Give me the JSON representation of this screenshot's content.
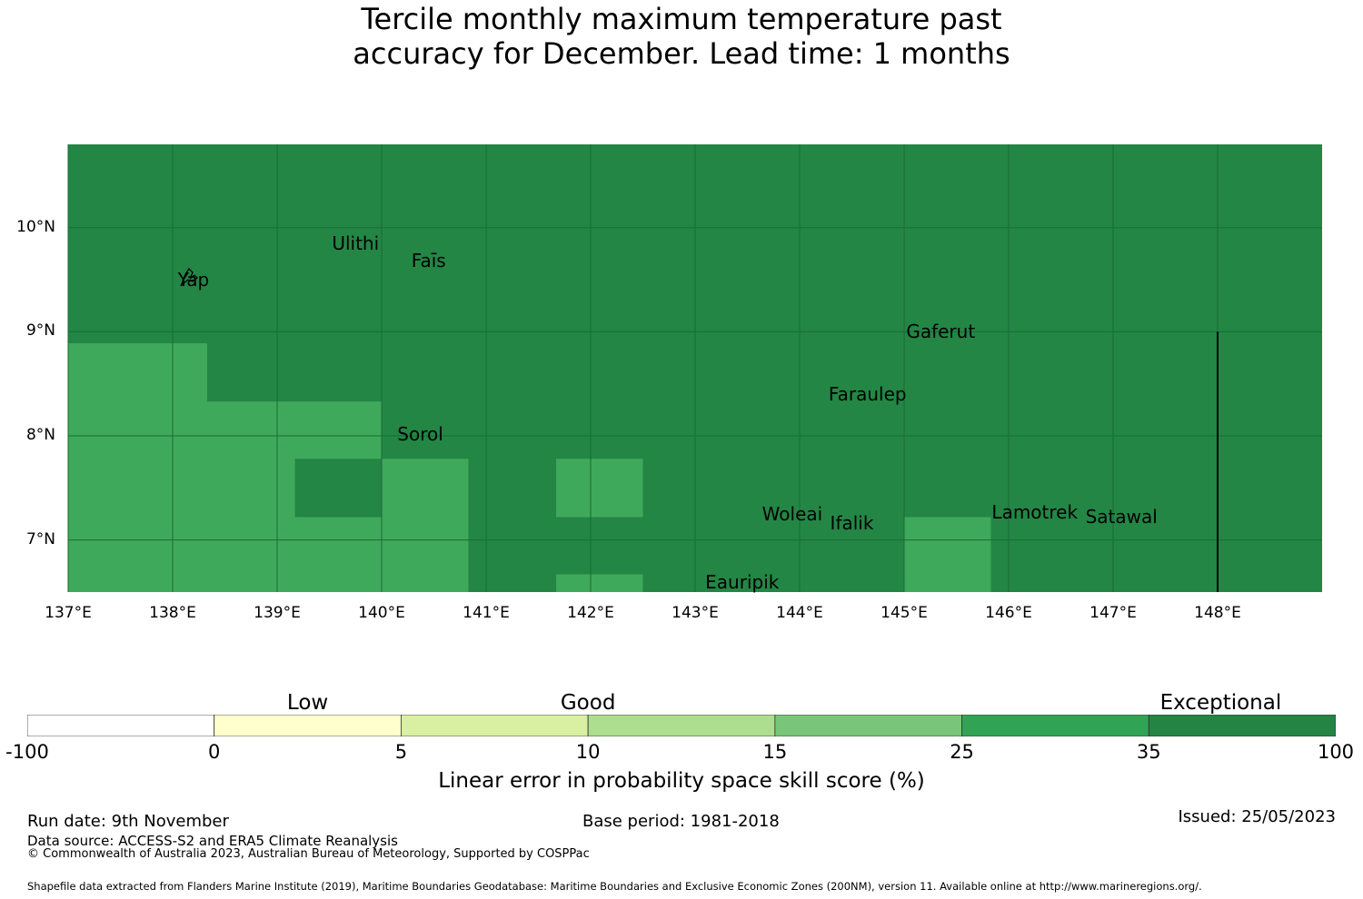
{
  "title": {
    "line1": "Tercile monthly maximum temperature past",
    "line2": "accuracy for December. Lead time: 1 months"
  },
  "colors": {
    "exceptional": "#238645",
    "very_good": "#3fa95b",
    "gridline": "#1a6b36"
  },
  "map": {
    "lon_range": [
      137,
      149
    ],
    "lat_range": [
      6.5,
      10.8
    ],
    "lat_ticks": [
      "10°N",
      "9°N",
      "8°N",
      "7°N"
    ],
    "lon_ticks": [
      "137°E",
      "138°E",
      "139°E",
      "140°E",
      "141°E",
      "142°E",
      "143°E",
      "144°E",
      "145°E",
      "146°E",
      "147°E",
      "148°E"
    ],
    "background_category": "exceptional",
    "cells": [
      {
        "lon0": 137,
        "lon1": 138.33,
        "lat0": 6.5,
        "lat1": 8.89,
        "category": "very_good"
      },
      {
        "lon0": 138.33,
        "lon1": 140,
        "lat0": 6.5,
        "lat1": 8.33,
        "category": "very_good"
      },
      {
        "lon0": 140,
        "lon1": 140.83,
        "lat0": 6.5,
        "lat1": 7.78,
        "category": "very_good"
      },
      {
        "lon0": 139.17,
        "lon1": 140,
        "lat0": 7.22,
        "lat1": 7.78,
        "category": "exceptional"
      },
      {
        "lon0": 141.67,
        "lon1": 142.5,
        "lat0": 7.22,
        "lat1": 7.78,
        "category": "very_good"
      },
      {
        "lon0": 141.67,
        "lon1": 142.5,
        "lat0": 6.5,
        "lat1": 6.67,
        "category": "very_good"
      },
      {
        "lon0": 145,
        "lon1": 145.83,
        "lat0": 6.5,
        "lat1": 7.22,
        "category": "very_good"
      }
    ],
    "boundary_line": {
      "lon": 148,
      "lat0": 6.5,
      "lat1": 9.0
    },
    "places": [
      {
        "name": "Ulithi",
        "lon": 139.75,
        "lat": 9.85
      },
      {
        "name": "Faīs",
        "lon": 140.45,
        "lat": 9.68
      },
      {
        "name": "Yap",
        "lon": 138.2,
        "lat": 9.5
      },
      {
        "name": "Gaferut",
        "lon": 145.35,
        "lat": 9.0
      },
      {
        "name": "Faraulep",
        "lon": 144.65,
        "lat": 8.4
      },
      {
        "name": "Sorol",
        "lon": 140.37,
        "lat": 8.02
      },
      {
        "name": "Woleai",
        "lon": 143.93,
        "lat": 7.25
      },
      {
        "name": "Lamotrek",
        "lon": 146.25,
        "lat": 7.27
      },
      {
        "name": "Satawal",
        "lon": 147.08,
        "lat": 7.22
      },
      {
        "name": "Ifalik",
        "lon": 144.5,
        "lat": 7.16
      },
      {
        "name": "Eauripik",
        "lon": 143.45,
        "lat": 6.6
      }
    ]
  },
  "legend": {
    "categories": [
      {
        "label": "Low",
        "value": 2.5
      },
      {
        "label": "Good",
        "value": 10
      },
      {
        "label": "Exceptional",
        "value": 60
      }
    ],
    "ticks": [
      "-100",
      "0",
      "5",
      "10",
      "15",
      "25",
      "35",
      "100"
    ],
    "colors": [
      "#ffffff",
      "#ffffcc",
      "#d9f0a3",
      "#addd8e",
      "#78c679",
      "#31a354",
      "#238443"
    ],
    "title": "Linear error in probability space skill score (%)"
  },
  "footer": {
    "run_date": "Run date: 9th November",
    "base_period": "Base period: 1981-2018",
    "issued": "Issued: 25/05/2023",
    "data_source": "Data source: ACCESS-S2 and ERA5 Climate Reanalysis",
    "copyright": "© Commonwealth of Australia 2023, Australian Bureau of Meteorology, Supported by COSPPac",
    "shapefile": "Shapefile data extracted from Flanders Marine Institute (2019), Maritime Boundaries Geodatabase: Maritime Boundaries and Exclusive Economic Zones (200NM), version 11. Available online at http://www.marineregions.org/."
  }
}
